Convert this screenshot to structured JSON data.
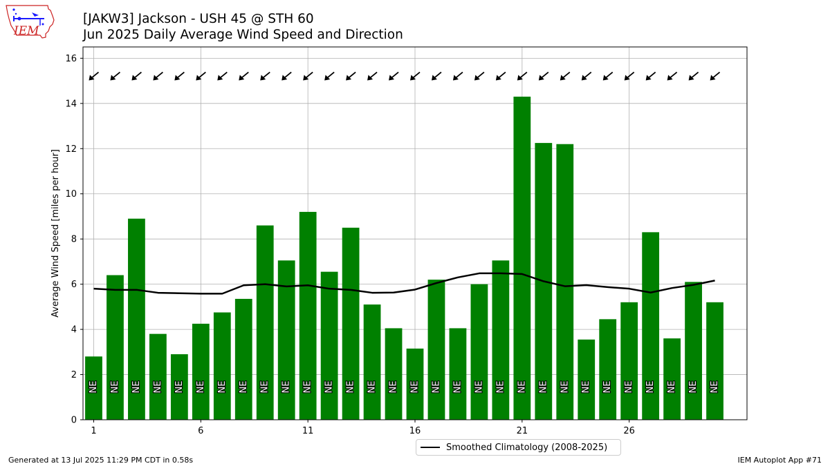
{
  "header": {
    "title_line1": "[JAKW3] Jackson - USH 45 @ STH 60",
    "title_line2": "Jun 2025 Daily Average Wind Speed and Direction"
  },
  "logo": {
    "text": "IEM"
  },
  "footer": {
    "generated": "Generated at 13 Jul 2025 11:29 PM CDT in 0.58s",
    "app": "IEM Autoplot App #71"
  },
  "colors": {
    "bar": "#008000",
    "climatology": "#000000",
    "grid": "#b0b0b0",
    "logo_red": "#cc2222",
    "logo_blue": "#1a1aff"
  },
  "chart_data": {
    "type": "bar",
    "ylabel": "Average Wind Speed [miles per hour]",
    "ylim": [
      0,
      16.5
    ],
    "xlim": [
      0.5,
      31.5
    ],
    "yticks": [
      0,
      2,
      4,
      6,
      8,
      10,
      12,
      14,
      16
    ],
    "xticks": [
      1,
      6,
      11,
      16,
      21,
      26
    ],
    "grid": true,
    "legend_position": "below",
    "days": [
      1,
      2,
      3,
      4,
      5,
      6,
      7,
      8,
      9,
      10,
      11,
      12,
      13,
      14,
      15,
      16,
      17,
      18,
      19,
      20,
      21,
      22,
      23,
      24,
      25,
      26,
      27,
      28,
      29,
      30
    ],
    "series": [
      {
        "name": "Daily Average Wind Speed",
        "type": "bar",
        "values": [
          2.8,
          6.4,
          8.9,
          3.8,
          2.9,
          4.25,
          4.75,
          5.35,
          8.6,
          7.05,
          9.2,
          6.55,
          8.5,
          5.1,
          4.05,
          3.15,
          6.2,
          4.05,
          6.0,
          7.05,
          14.3,
          12.25,
          12.2,
          3.55,
          4.45,
          5.2,
          8.3,
          3.6,
          6.1,
          5.2
        ]
      },
      {
        "name": "Smoothed Climatology (2008-2025)",
        "type": "line",
        "values": [
          5.8,
          5.75,
          5.75,
          5.62,
          5.6,
          5.58,
          5.58,
          5.95,
          6.0,
          5.9,
          5.95,
          5.8,
          5.75,
          5.62,
          5.63,
          5.76,
          6.05,
          6.3,
          6.48,
          6.48,
          6.45,
          6.13,
          5.91,
          5.96,
          5.87,
          5.8,
          5.63,
          5.83,
          5.97,
          6.16
        ]
      }
    ],
    "direction_labels": [
      "NE",
      "NE",
      "NE",
      "NE",
      "NE",
      "NE",
      "NE",
      "NE",
      "NE",
      "NE",
      "NE",
      "NE",
      "NE",
      "NE",
      "NE",
      "NE",
      "NE",
      "NE",
      "NE",
      "NE",
      "NE",
      "NE",
      "NE",
      "NE",
      "NE",
      "NE",
      "NE",
      "NE",
      "NE",
      "NE"
    ],
    "direction_arrow_y": 15.2
  }
}
